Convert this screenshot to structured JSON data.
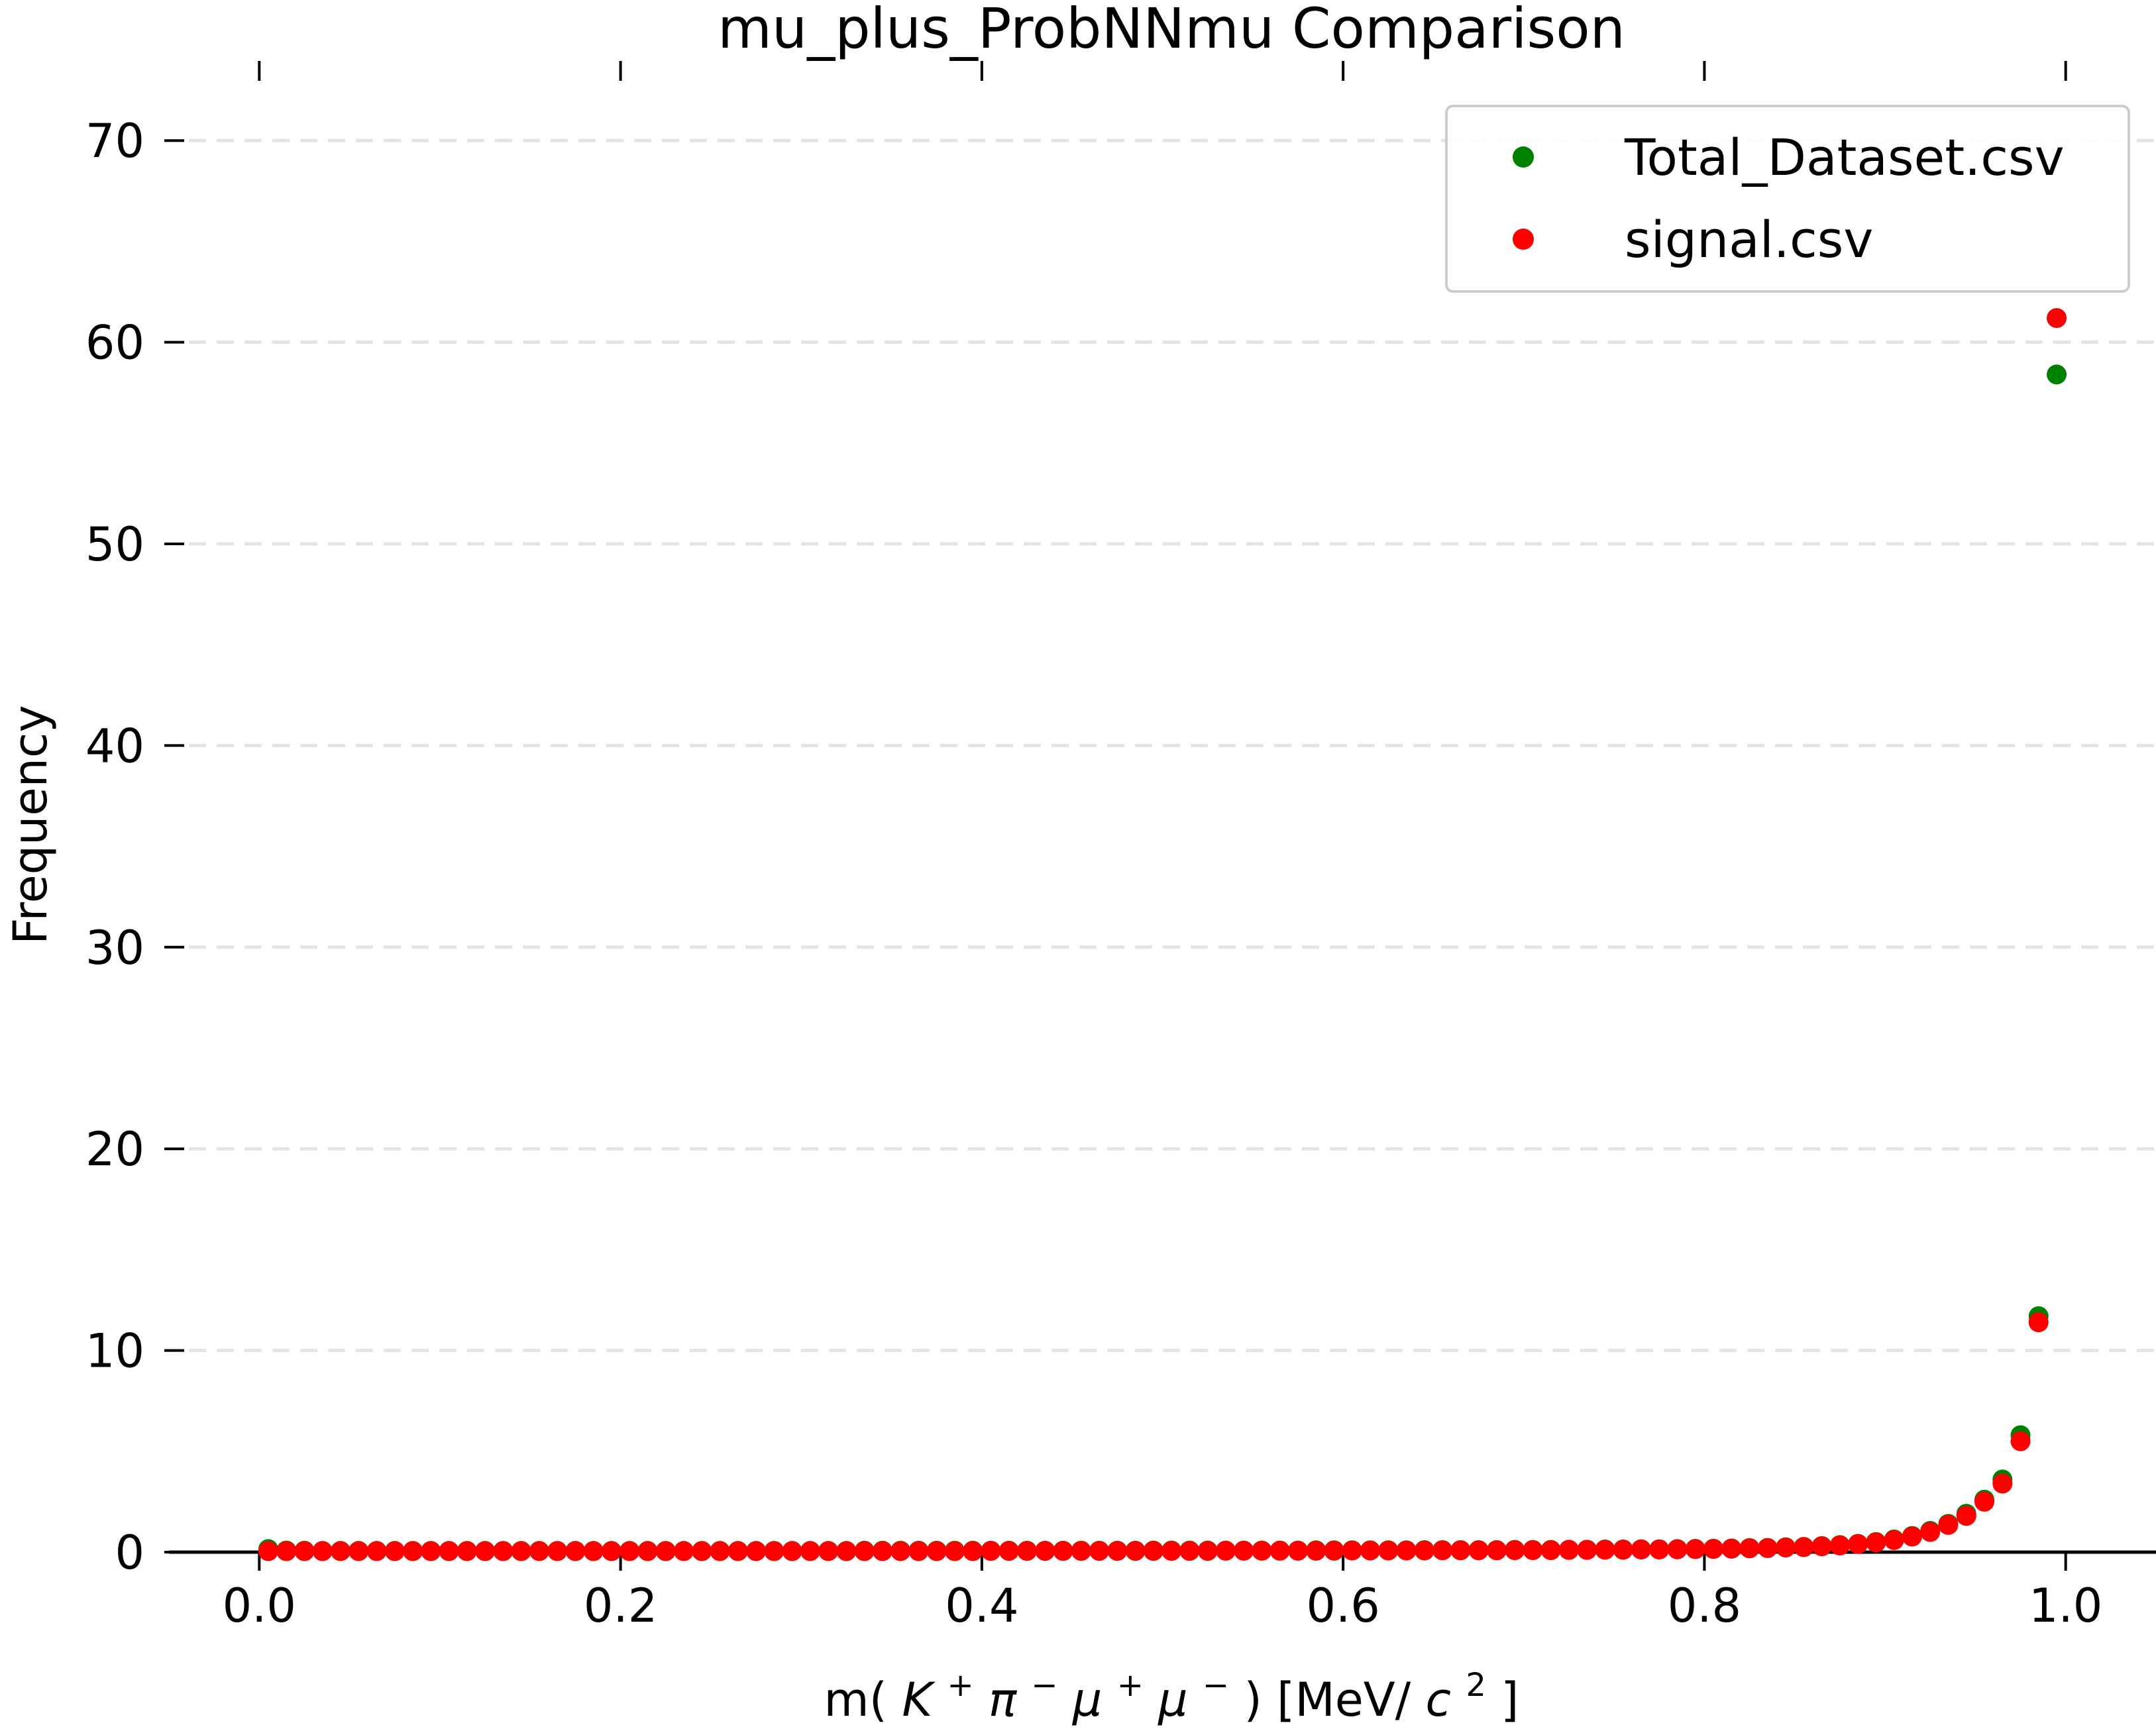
{
  "chart_data": {
    "type": "scatter",
    "title": "mu_plus_ProbNNmu Comparison",
    "xlabel": {
      "prefix": "m(",
      "particles": [
        {
          "base": "K",
          "charge": "+"
        },
        {
          "base": "π",
          "charge": "−"
        },
        {
          "base": "μ",
          "charge": "+"
        },
        {
          "base": "μ",
          "charge": "−"
        }
      ],
      "suffix_before_power": ") [MeV/",
      "power_base": "c",
      "power": "2",
      "suffix_end": "]"
    },
    "ylabel": "Frequency",
    "xlim": [
      -0.05,
      1.05
    ],
    "ylim": [
      0,
      75
    ],
    "xticks": [
      0.0,
      0.2,
      0.4,
      0.6,
      0.8,
      1.0
    ],
    "xtick_labels": [
      "0.0",
      "0.2",
      "0.4",
      "0.6",
      "0.8",
      "1.0"
    ],
    "yticks": [
      0,
      10,
      20,
      30,
      40,
      50,
      60,
      70
    ],
    "ytick_labels": [
      "0",
      "10",
      "20",
      "30",
      "40",
      "50",
      "60",
      "70"
    ],
    "grid": "horizontal-dashed",
    "legend_position": "top-right",
    "series": [
      {
        "name": "Total_Dataset.csv",
        "color": "#008000",
        "x": [
          0.005,
          0.015,
          0.025,
          0.035,
          0.045,
          0.055,
          0.065,
          0.075,
          0.085,
          0.095,
          0.105,
          0.115,
          0.125,
          0.135,
          0.145,
          0.155,
          0.165,
          0.175,
          0.185,
          0.195,
          0.205,
          0.215,
          0.225,
          0.235,
          0.245,
          0.255,
          0.265,
          0.275,
          0.285,
          0.295,
          0.305,
          0.315,
          0.325,
          0.335,
          0.345,
          0.355,
          0.365,
          0.375,
          0.385,
          0.395,
          0.405,
          0.415,
          0.425,
          0.435,
          0.445,
          0.455,
          0.465,
          0.475,
          0.485,
          0.495,
          0.505,
          0.515,
          0.525,
          0.535,
          0.545,
          0.555,
          0.565,
          0.575,
          0.585,
          0.595,
          0.605,
          0.615,
          0.625,
          0.635,
          0.645,
          0.655,
          0.665,
          0.675,
          0.685,
          0.695,
          0.705,
          0.715,
          0.725,
          0.735,
          0.745,
          0.755,
          0.765,
          0.775,
          0.785,
          0.795,
          0.805,
          0.815,
          0.825,
          0.835,
          0.845,
          0.855,
          0.865,
          0.875,
          0.885,
          0.895,
          0.905,
          0.915,
          0.925,
          0.935,
          0.945,
          0.955,
          0.965,
          0.975,
          0.985,
          0.995
        ],
        "y": [
          0.15,
          0.08,
          0.07,
          0.06,
          0.06,
          0.06,
          0.06,
          0.06,
          0.06,
          0.06,
          0.06,
          0.06,
          0.06,
          0.06,
          0.06,
          0.06,
          0.06,
          0.06,
          0.06,
          0.06,
          0.06,
          0.06,
          0.06,
          0.06,
          0.06,
          0.06,
          0.06,
          0.06,
          0.06,
          0.06,
          0.06,
          0.06,
          0.06,
          0.07,
          0.07,
          0.07,
          0.07,
          0.07,
          0.07,
          0.07,
          0.07,
          0.07,
          0.07,
          0.07,
          0.07,
          0.07,
          0.07,
          0.07,
          0.07,
          0.08,
          0.08,
          0.08,
          0.08,
          0.08,
          0.08,
          0.08,
          0.08,
          0.08,
          0.09,
          0.09,
          0.09,
          0.09,
          0.09,
          0.09,
          0.1,
          0.1,
          0.1,
          0.1,
          0.1,
          0.11,
          0.11,
          0.11,
          0.12,
          0.12,
          0.13,
          0.13,
          0.14,
          0.14,
          0.15,
          0.16,
          0.17,
          0.18,
          0.2,
          0.21,
          0.24,
          0.26,
          0.3,
          0.35,
          0.41,
          0.5,
          0.63,
          0.8,
          1.05,
          1.4,
          1.9,
          2.6,
          3.6,
          5.8,
          11.7,
          58.4
        ]
      },
      {
        "name": "signal.csv",
        "color": "#ff0000",
        "x": [
          0.005,
          0.015,
          0.025,
          0.035,
          0.045,
          0.055,
          0.065,
          0.075,
          0.085,
          0.095,
          0.105,
          0.115,
          0.125,
          0.135,
          0.145,
          0.155,
          0.165,
          0.175,
          0.185,
          0.195,
          0.205,
          0.215,
          0.225,
          0.235,
          0.245,
          0.255,
          0.265,
          0.275,
          0.285,
          0.295,
          0.305,
          0.315,
          0.325,
          0.335,
          0.345,
          0.355,
          0.365,
          0.375,
          0.385,
          0.395,
          0.405,
          0.415,
          0.425,
          0.435,
          0.445,
          0.455,
          0.465,
          0.475,
          0.485,
          0.495,
          0.505,
          0.515,
          0.525,
          0.535,
          0.545,
          0.555,
          0.565,
          0.575,
          0.585,
          0.595,
          0.605,
          0.615,
          0.625,
          0.635,
          0.645,
          0.655,
          0.665,
          0.675,
          0.685,
          0.695,
          0.705,
          0.715,
          0.725,
          0.735,
          0.745,
          0.755,
          0.765,
          0.775,
          0.785,
          0.795,
          0.805,
          0.815,
          0.825,
          0.835,
          0.845,
          0.855,
          0.865,
          0.875,
          0.885,
          0.895,
          0.905,
          0.915,
          0.925,
          0.935,
          0.945,
          0.955,
          0.965,
          0.975,
          0.985,
          0.995
        ],
        "y": [
          0.05,
          0.05,
          0.05,
          0.05,
          0.05,
          0.05,
          0.05,
          0.05,
          0.05,
          0.05,
          0.05,
          0.05,
          0.05,
          0.05,
          0.05,
          0.05,
          0.05,
          0.05,
          0.05,
          0.05,
          0.05,
          0.05,
          0.05,
          0.05,
          0.05,
          0.05,
          0.05,
          0.05,
          0.05,
          0.05,
          0.05,
          0.05,
          0.05,
          0.05,
          0.05,
          0.05,
          0.05,
          0.05,
          0.05,
          0.05,
          0.06,
          0.06,
          0.06,
          0.06,
          0.06,
          0.06,
          0.06,
          0.06,
          0.06,
          0.06,
          0.06,
          0.06,
          0.06,
          0.07,
          0.07,
          0.07,
          0.07,
          0.07,
          0.07,
          0.07,
          0.08,
          0.08,
          0.08,
          0.08,
          0.08,
          0.09,
          0.09,
          0.09,
          0.09,
          0.1,
          0.1,
          0.1,
          0.11,
          0.11,
          0.12,
          0.12,
          0.13,
          0.13,
          0.14,
          0.15,
          0.16,
          0.17,
          0.19,
          0.2,
          0.23,
          0.25,
          0.29,
          0.33,
          0.4,
          0.48,
          0.6,
          0.77,
          1.0,
          1.35,
          1.8,
          2.5,
          3.4,
          5.5,
          11.4,
          61.2
        ]
      }
    ]
  }
}
